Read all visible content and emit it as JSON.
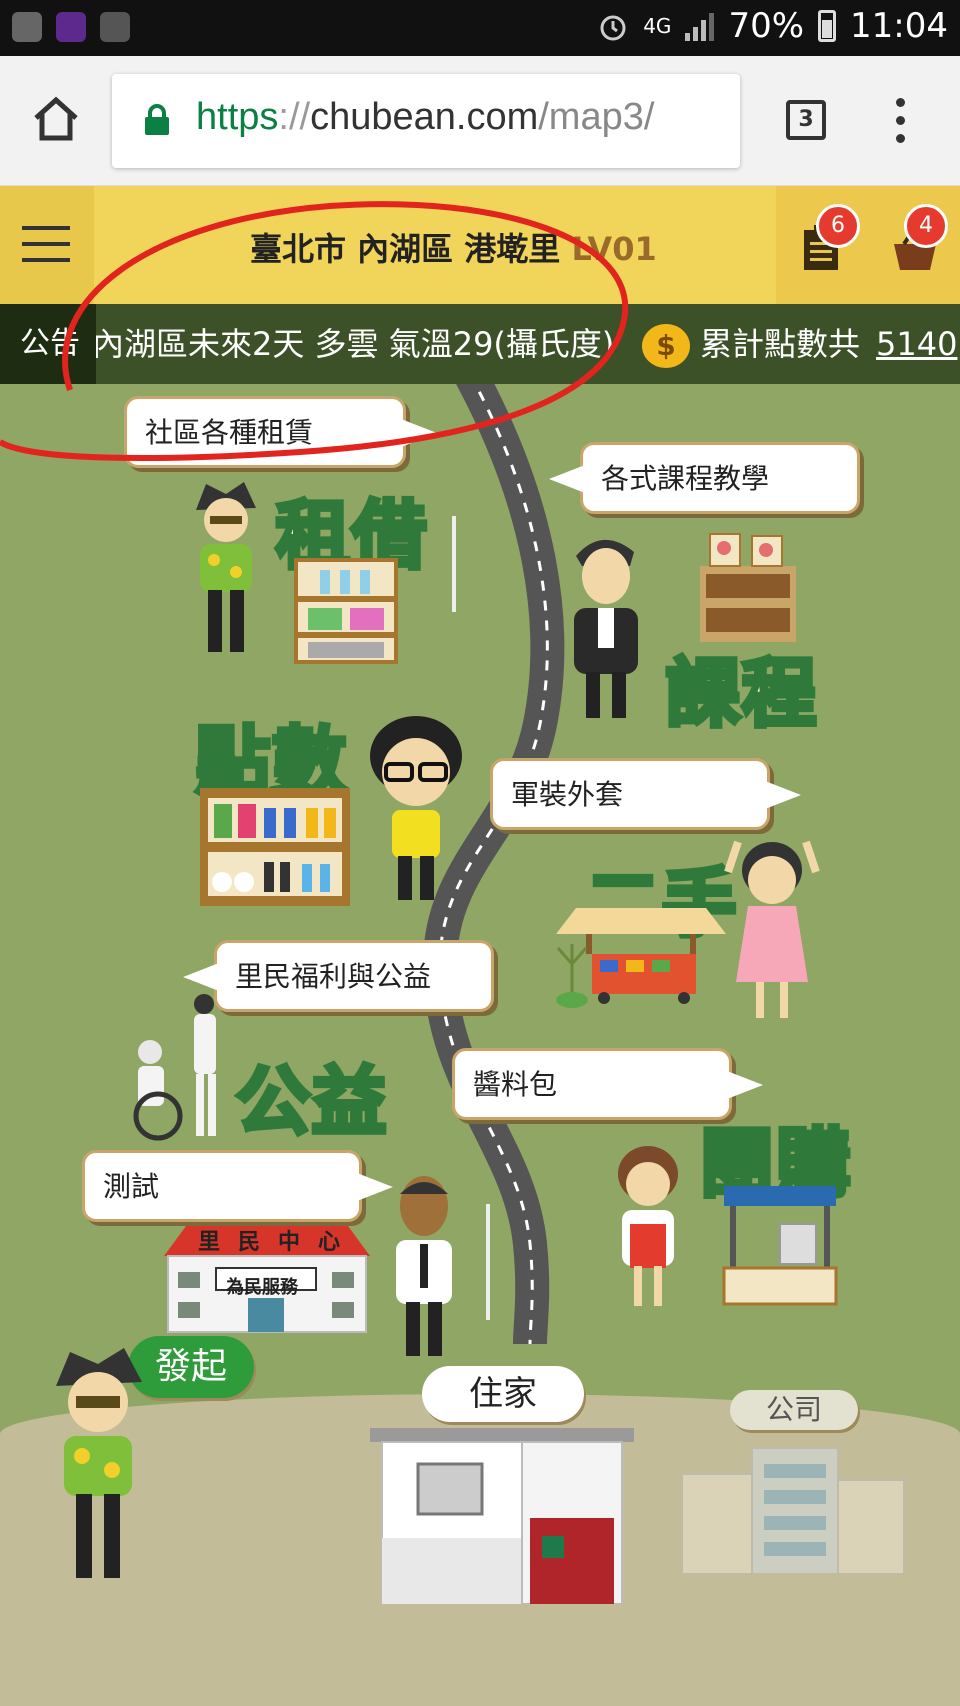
{
  "status_bar": {
    "network": "4G",
    "battery": "70%",
    "time": "11:04"
  },
  "browser": {
    "url_scheme": "https",
    "url_sep": "://",
    "url_host": "chubean.com",
    "url_path": "/map3/",
    "tab_count": "3"
  },
  "header": {
    "location": "臺北市 內湖區 港墘里",
    "level": "LV01",
    "doc_badge": "6",
    "cart_badge": "4"
  },
  "announcement": {
    "label": "公告",
    "text": "內湖區未來2天 多雲 氣溫29(攝氏度)",
    "coin_symbol": "$",
    "points_label": "累計點數共",
    "points_value": "5140"
  },
  "map": {
    "bubbles": {
      "rental": "社區各種租賃",
      "courses": "各式課程教學",
      "secondhand": "軍裝外套",
      "welfare": "里民福利與公益",
      "groupbuy": "醬料包",
      "test": "測試"
    },
    "areas": {
      "rental": "租借",
      "courses": "課程",
      "points": "點數",
      "secondhand": "二手",
      "welfare": "公益",
      "groupbuy": "團購"
    },
    "center": {
      "sign": "里民中心",
      "banner": "為民服務"
    },
    "initiate": "發起",
    "home": "住家",
    "company": "公司"
  },
  "colors": {
    "header_yellow": "#f1d55a",
    "ann_green": "#3d5128",
    "map_green": "#8fa664",
    "word_stroke": "#2f7a3a",
    "badge_red": "#e63a2e"
  }
}
